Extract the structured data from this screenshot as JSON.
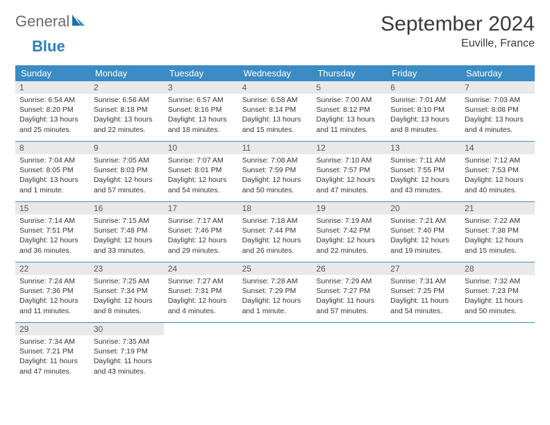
{
  "brand": {
    "part1": "General",
    "part2": "Blue"
  },
  "title": "September 2024",
  "location": "Euville, France",
  "colors": {
    "header_bg": "#3b8bc4",
    "header_text": "#ffffff",
    "daynum_bg": "#e9e9e9",
    "daynum_text": "#555555",
    "body_text": "#333333",
    "row_border": "#3b8bc4",
    "logo_gray": "#6b6b6b",
    "logo_blue": "#2a7fba",
    "page_bg": "#ffffff"
  },
  "typography": {
    "title_fontsize": 30,
    "location_fontsize": 16,
    "dow_fontsize": 13,
    "daynum_fontsize": 12,
    "body_fontsize": 10.5
  },
  "layout": {
    "columns": 7,
    "cell_min_height": 86
  },
  "dow": [
    "Sunday",
    "Monday",
    "Tuesday",
    "Wednesday",
    "Thursday",
    "Friday",
    "Saturday"
  ],
  "days": [
    {
      "n": "1",
      "sunrise": "Sunrise: 6:54 AM",
      "sunset": "Sunset: 8:20 PM",
      "daylight": "Daylight: 13 hours and 25 minutes."
    },
    {
      "n": "2",
      "sunrise": "Sunrise: 6:56 AM",
      "sunset": "Sunset: 8:18 PM",
      "daylight": "Daylight: 13 hours and 22 minutes."
    },
    {
      "n": "3",
      "sunrise": "Sunrise: 6:57 AM",
      "sunset": "Sunset: 8:16 PM",
      "daylight": "Daylight: 13 hours and 18 minutes."
    },
    {
      "n": "4",
      "sunrise": "Sunrise: 6:58 AM",
      "sunset": "Sunset: 8:14 PM",
      "daylight": "Daylight: 13 hours and 15 minutes."
    },
    {
      "n": "5",
      "sunrise": "Sunrise: 7:00 AM",
      "sunset": "Sunset: 8:12 PM",
      "daylight": "Daylight: 13 hours and 11 minutes."
    },
    {
      "n": "6",
      "sunrise": "Sunrise: 7:01 AM",
      "sunset": "Sunset: 8:10 PM",
      "daylight": "Daylight: 13 hours and 8 minutes."
    },
    {
      "n": "7",
      "sunrise": "Sunrise: 7:03 AM",
      "sunset": "Sunset: 8:08 PM",
      "daylight": "Daylight: 13 hours and 4 minutes."
    },
    {
      "n": "8",
      "sunrise": "Sunrise: 7:04 AM",
      "sunset": "Sunset: 8:05 PM",
      "daylight": "Daylight: 13 hours and 1 minute."
    },
    {
      "n": "9",
      "sunrise": "Sunrise: 7:05 AM",
      "sunset": "Sunset: 8:03 PM",
      "daylight": "Daylight: 12 hours and 57 minutes."
    },
    {
      "n": "10",
      "sunrise": "Sunrise: 7:07 AM",
      "sunset": "Sunset: 8:01 PM",
      "daylight": "Daylight: 12 hours and 54 minutes."
    },
    {
      "n": "11",
      "sunrise": "Sunrise: 7:08 AM",
      "sunset": "Sunset: 7:59 PM",
      "daylight": "Daylight: 12 hours and 50 minutes."
    },
    {
      "n": "12",
      "sunrise": "Sunrise: 7:10 AM",
      "sunset": "Sunset: 7:57 PM",
      "daylight": "Daylight: 12 hours and 47 minutes."
    },
    {
      "n": "13",
      "sunrise": "Sunrise: 7:11 AM",
      "sunset": "Sunset: 7:55 PM",
      "daylight": "Daylight: 12 hours and 43 minutes."
    },
    {
      "n": "14",
      "sunrise": "Sunrise: 7:12 AM",
      "sunset": "Sunset: 7:53 PM",
      "daylight": "Daylight: 12 hours and 40 minutes."
    },
    {
      "n": "15",
      "sunrise": "Sunrise: 7:14 AM",
      "sunset": "Sunset: 7:51 PM",
      "daylight": "Daylight: 12 hours and 36 minutes."
    },
    {
      "n": "16",
      "sunrise": "Sunrise: 7:15 AM",
      "sunset": "Sunset: 7:48 PM",
      "daylight": "Daylight: 12 hours and 33 minutes."
    },
    {
      "n": "17",
      "sunrise": "Sunrise: 7:17 AM",
      "sunset": "Sunset: 7:46 PM",
      "daylight": "Daylight: 12 hours and 29 minutes."
    },
    {
      "n": "18",
      "sunrise": "Sunrise: 7:18 AM",
      "sunset": "Sunset: 7:44 PM",
      "daylight": "Daylight: 12 hours and 26 minutes."
    },
    {
      "n": "19",
      "sunrise": "Sunrise: 7:19 AM",
      "sunset": "Sunset: 7:42 PM",
      "daylight": "Daylight: 12 hours and 22 minutes."
    },
    {
      "n": "20",
      "sunrise": "Sunrise: 7:21 AM",
      "sunset": "Sunset: 7:40 PM",
      "daylight": "Daylight: 12 hours and 19 minutes."
    },
    {
      "n": "21",
      "sunrise": "Sunrise: 7:22 AM",
      "sunset": "Sunset: 7:38 PM",
      "daylight": "Daylight: 12 hours and 15 minutes."
    },
    {
      "n": "22",
      "sunrise": "Sunrise: 7:24 AM",
      "sunset": "Sunset: 7:36 PM",
      "daylight": "Daylight: 12 hours and 11 minutes."
    },
    {
      "n": "23",
      "sunrise": "Sunrise: 7:25 AM",
      "sunset": "Sunset: 7:34 PM",
      "daylight": "Daylight: 12 hours and 8 minutes."
    },
    {
      "n": "24",
      "sunrise": "Sunrise: 7:27 AM",
      "sunset": "Sunset: 7:31 PM",
      "daylight": "Daylight: 12 hours and 4 minutes."
    },
    {
      "n": "25",
      "sunrise": "Sunrise: 7:28 AM",
      "sunset": "Sunset: 7:29 PM",
      "daylight": "Daylight: 12 hours and 1 minute."
    },
    {
      "n": "26",
      "sunrise": "Sunrise: 7:29 AM",
      "sunset": "Sunset: 7:27 PM",
      "daylight": "Daylight: 11 hours and 57 minutes."
    },
    {
      "n": "27",
      "sunrise": "Sunrise: 7:31 AM",
      "sunset": "Sunset: 7:25 PM",
      "daylight": "Daylight: 11 hours and 54 minutes."
    },
    {
      "n": "28",
      "sunrise": "Sunrise: 7:32 AM",
      "sunset": "Sunset: 7:23 PM",
      "daylight": "Daylight: 11 hours and 50 minutes."
    },
    {
      "n": "29",
      "sunrise": "Sunrise: 7:34 AM",
      "sunset": "Sunset: 7:21 PM",
      "daylight": "Daylight: 11 hours and 47 minutes."
    },
    {
      "n": "30",
      "sunrise": "Sunrise: 7:35 AM",
      "sunset": "Sunset: 7:19 PM",
      "daylight": "Daylight: 11 hours and 43 minutes."
    }
  ]
}
